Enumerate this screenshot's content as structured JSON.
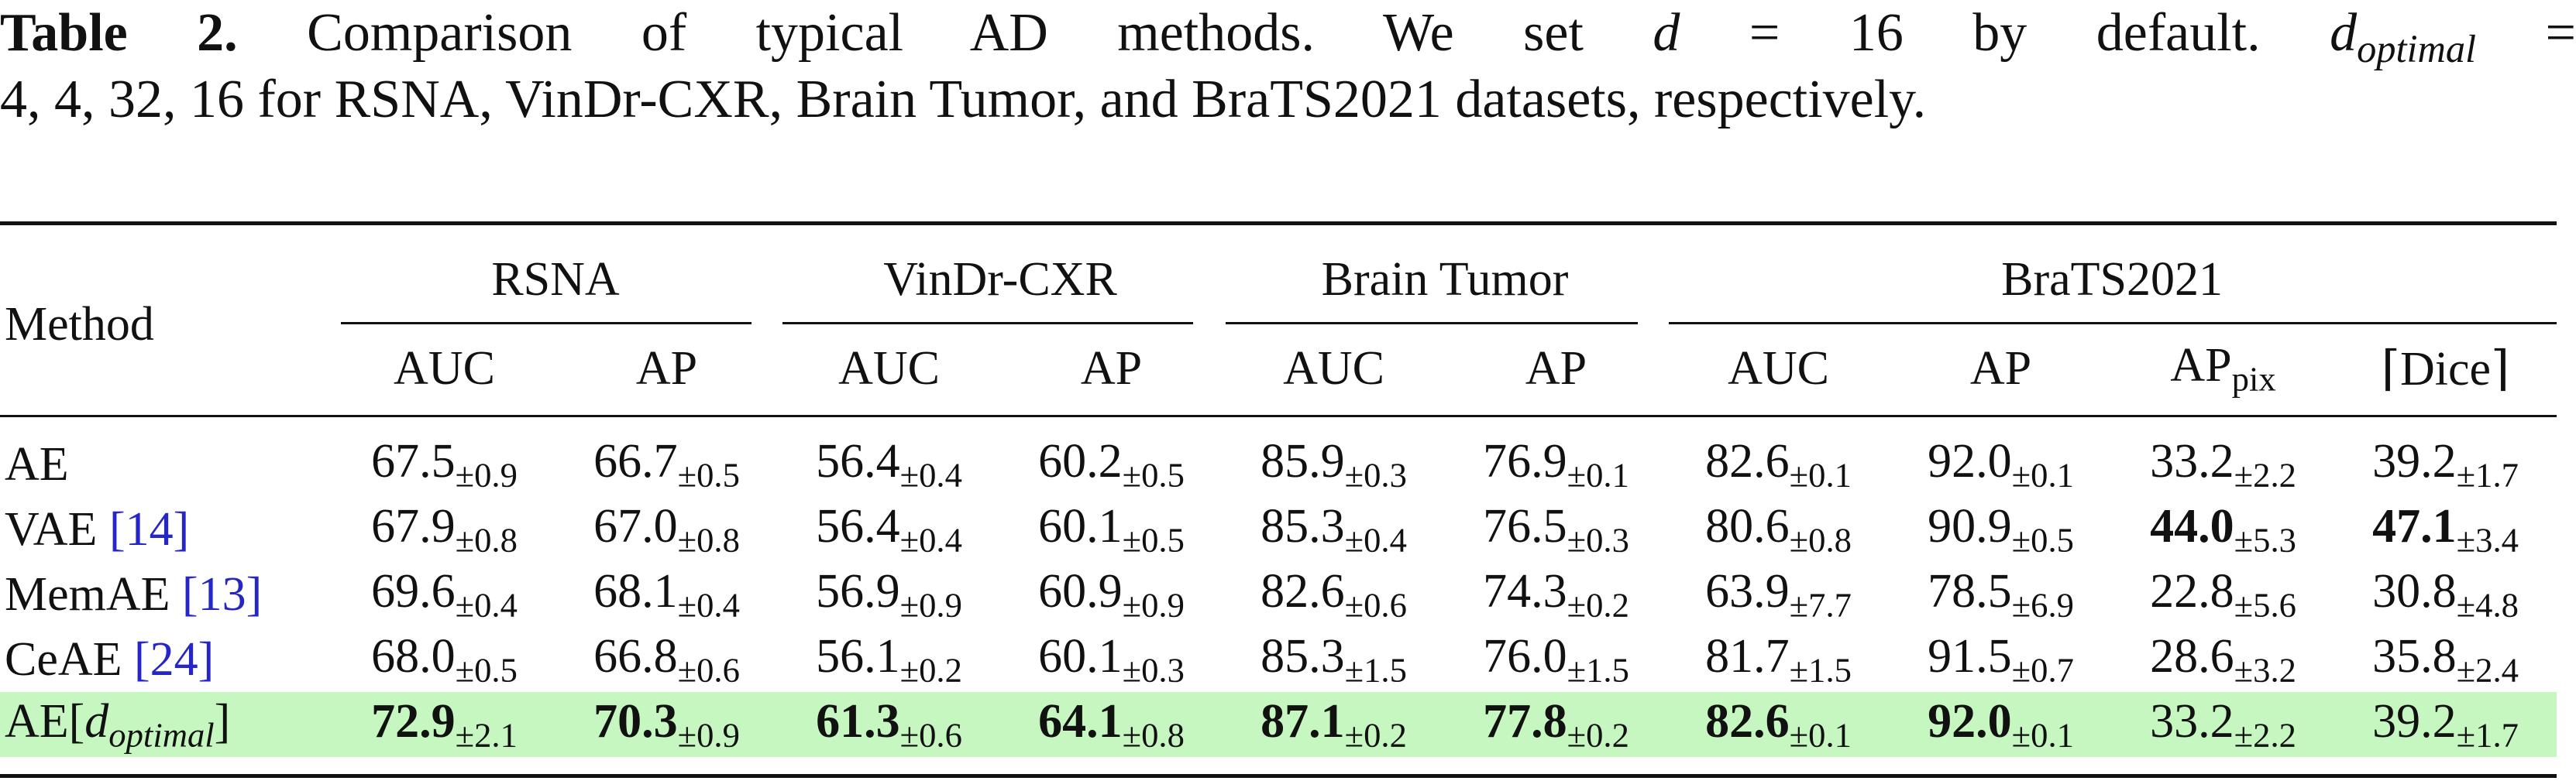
{
  "caption": {
    "table_number": "Table 2.",
    "line1_text": "Comparison of typical AD methods. We set",
    "d_symbol": "d",
    "equals_16": "= 16 by default.",
    "d_optimal_symbol": "d",
    "optimal_subscript": "optimal",
    "equals": "=",
    "line2_values": "4, 4, 32, 16",
    "line2_text": "for RSNA, VinDr-CXR, Brain Tumor, and BraTS2021 datasets, respectively."
  },
  "table": {
    "method_header": "Method",
    "dataset_headers": [
      "RSNA",
      "VinDr-CXR",
      "Brain Tumor",
      "BraTS2021"
    ],
    "metric_headers": [
      "AUC",
      "AP",
      "AUC",
      "AP",
      "AUC",
      "AP",
      "AUC",
      "AP",
      "AP",
      "⌈Dice⌉"
    ],
    "ap_pix_subscript": "pix",
    "rows": [
      {
        "method": "AE",
        "cite": "",
        "cells": [
          {
            "v": "67.5",
            "pm": "±0.9"
          },
          {
            "v": "66.7",
            "pm": "±0.5"
          },
          {
            "v": "56.4",
            "pm": "±0.4"
          },
          {
            "v": "60.2",
            "pm": "±0.5"
          },
          {
            "v": "85.9",
            "pm": "±0.3"
          },
          {
            "v": "76.9",
            "pm": "±0.1"
          },
          {
            "v": "82.6",
            "pm": "±0.1"
          },
          {
            "v": "92.0",
            "pm": "±0.1"
          },
          {
            "v": "33.2",
            "pm": "±2.2"
          },
          {
            "v": "39.2",
            "pm": "±1.7"
          }
        ]
      },
      {
        "method": "VAE",
        "cite": "[14]",
        "cells": [
          {
            "v": "67.9",
            "pm": "±0.8"
          },
          {
            "v": "67.0",
            "pm": "±0.8"
          },
          {
            "v": "56.4",
            "pm": "±0.4"
          },
          {
            "v": "60.1",
            "pm": "±0.5"
          },
          {
            "v": "85.3",
            "pm": "±0.4"
          },
          {
            "v": "76.5",
            "pm": "±0.3"
          },
          {
            "v": "80.6",
            "pm": "±0.8"
          },
          {
            "v": "90.9",
            "pm": "±0.5"
          },
          {
            "v": "44.0",
            "pm": "±5.3"
          },
          {
            "v": "47.1",
            "pm": "±3.4"
          }
        ]
      },
      {
        "method": "MemAE",
        "cite": "[13]",
        "cells": [
          {
            "v": "69.6",
            "pm": "±0.4"
          },
          {
            "v": "68.1",
            "pm": "±0.4"
          },
          {
            "v": "56.9",
            "pm": "±0.9"
          },
          {
            "v": "60.9",
            "pm": "±0.9"
          },
          {
            "v": "82.6",
            "pm": "±0.6"
          },
          {
            "v": "74.3",
            "pm": "±0.2"
          },
          {
            "v": "63.9",
            "pm": "±7.7"
          },
          {
            "v": "78.5",
            "pm": "±6.9"
          },
          {
            "v": "22.8",
            "pm": "±5.6"
          },
          {
            "v": "30.8",
            "pm": "±4.8"
          }
        ]
      },
      {
        "method": "CeAE",
        "cite": "[24]",
        "cells": [
          {
            "v": "68.0",
            "pm": "±0.5"
          },
          {
            "v": "66.8",
            "pm": "±0.6"
          },
          {
            "v": "56.1",
            "pm": "±0.2"
          },
          {
            "v": "60.1",
            "pm": "±0.3"
          },
          {
            "v": "85.3",
            "pm": "±1.5"
          },
          {
            "v": "76.0",
            "pm": "±1.5"
          },
          {
            "v": "81.7",
            "pm": "±1.5"
          },
          {
            "v": "91.5",
            "pm": "±0.7"
          },
          {
            "v": "28.6",
            "pm": "±3.2"
          },
          {
            "v": "35.8",
            "pm": "±2.4"
          }
        ]
      },
      {
        "method_prefix": "AE[",
        "method_d": "d",
        "method_sub": "optimal",
        "method_suffix": "]",
        "cells": [
          {
            "v": "72.9",
            "pm": "±2.1"
          },
          {
            "v": "70.3",
            "pm": "±0.9"
          },
          {
            "v": "61.3",
            "pm": "±0.6"
          },
          {
            "v": "64.1",
            "pm": "±0.8"
          },
          {
            "v": "87.1",
            "pm": "±0.2"
          },
          {
            "v": "77.8",
            "pm": "±0.2"
          },
          {
            "v": "82.6",
            "pm": "±0.1"
          },
          {
            "v": "92.0",
            "pm": "±0.1"
          },
          {
            "v": "33.2",
            "pm": "±2.2"
          },
          {
            "v": "39.2",
            "pm": "±1.7"
          }
        ]
      }
    ]
  },
  "colors": {
    "highlight_row": "#c6f7c0",
    "citation_link": "#2525c8",
    "rule": "#111111"
  }
}
